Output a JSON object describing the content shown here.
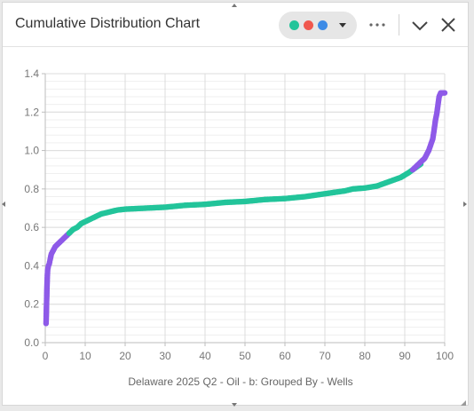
{
  "panel": {
    "title": "Cumulative Distribution Chart",
    "legend_colors": [
      "#22c49a",
      "#f0584e",
      "#3d8be6"
    ],
    "icons": [
      "chevron-down-icon",
      "more-icon",
      "collapse-icon",
      "close-icon"
    ]
  },
  "chart_data": {
    "type": "scatter",
    "title": "",
    "xlabel": "Delaware 2025 Q2 - Oil - b: Grouped By - Wells",
    "ylabel": "",
    "xlim": [
      0,
      100
    ],
    "ylim": [
      0,
      1.4
    ],
    "x_ticks": [
      0,
      10,
      20,
      30,
      40,
      50,
      60,
      70,
      80,
      90,
      100
    ],
    "y_ticks": [
      0.0,
      0.2,
      0.4,
      0.6,
      0.8,
      1.0,
      1.2,
      1.4
    ],
    "y_tick_labels": [
      "0.0",
      "0.2",
      "0.4",
      "0.6",
      "0.8",
      "1.0",
      "1.2",
      "1.4"
    ],
    "grid": true,
    "series": [
      {
        "color": "#8e5ae8",
        "points": [
          [
            0.2,
            0.1
          ],
          [
            0.4,
            0.27
          ],
          [
            0.5,
            0.34
          ],
          [
            0.6,
            0.38
          ],
          [
            0.8,
            0.4
          ],
          [
            1,
            0.41
          ],
          [
            1.2,
            0.43
          ],
          [
            1.5,
            0.46
          ],
          [
            2,
            0.48
          ],
          [
            2.5,
            0.5
          ],
          [
            3,
            0.51
          ],
          [
            3.5,
            0.52
          ],
          [
            4,
            0.53
          ],
          [
            4.5,
            0.54
          ],
          [
            5,
            0.55
          ],
          [
            5.5,
            0.56
          ],
          [
            6,
            0.57
          ]
        ]
      },
      {
        "color": "#22c49a",
        "points": [
          [
            6,
            0.57
          ],
          [
            7,
            0.59
          ],
          [
            8,
            0.6
          ],
          [
            9,
            0.62
          ],
          [
            10,
            0.63
          ],
          [
            12,
            0.65
          ],
          [
            14,
            0.67
          ],
          [
            16,
            0.68
          ],
          [
            18,
            0.69
          ],
          [
            20,
            0.695
          ],
          [
            25,
            0.7
          ],
          [
            30,
            0.705
          ],
          [
            35,
            0.715
          ],
          [
            40,
            0.72
          ],
          [
            45,
            0.73
          ],
          [
            50,
            0.735
          ],
          [
            55,
            0.745
          ],
          [
            60,
            0.75
          ],
          [
            65,
            0.76
          ],
          [
            70,
            0.775
          ],
          [
            75,
            0.79
          ],
          [
            77,
            0.8
          ],
          [
            80,
            0.805
          ],
          [
            83,
            0.815
          ],
          [
            85,
            0.83
          ],
          [
            87,
            0.845
          ],
          [
            89,
            0.86
          ],
          [
            91,
            0.885
          ],
          [
            92,
            0.9
          ],
          [
            93,
            0.915
          ],
          [
            94,
            0.93
          ]
        ]
      },
      {
        "color": "#8e5ae8",
        "points": [
          [
            92,
            0.9
          ],
          [
            93,
            0.92
          ],
          [
            94,
            0.94
          ],
          [
            95,
            0.96
          ],
          [
            95.5,
            0.98
          ],
          [
            96,
            1.0
          ],
          [
            96.5,
            1.03
          ],
          [
            97,
            1.06
          ],
          [
            97.3,
            1.1
          ],
          [
            97.5,
            1.13
          ],
          [
            97.7,
            1.16
          ],
          [
            98,
            1.19
          ],
          [
            98.2,
            1.22
          ],
          [
            98.4,
            1.25
          ],
          [
            98.6,
            1.28
          ],
          [
            99,
            1.3
          ],
          [
            100,
            1.3
          ]
        ]
      }
    ]
  }
}
